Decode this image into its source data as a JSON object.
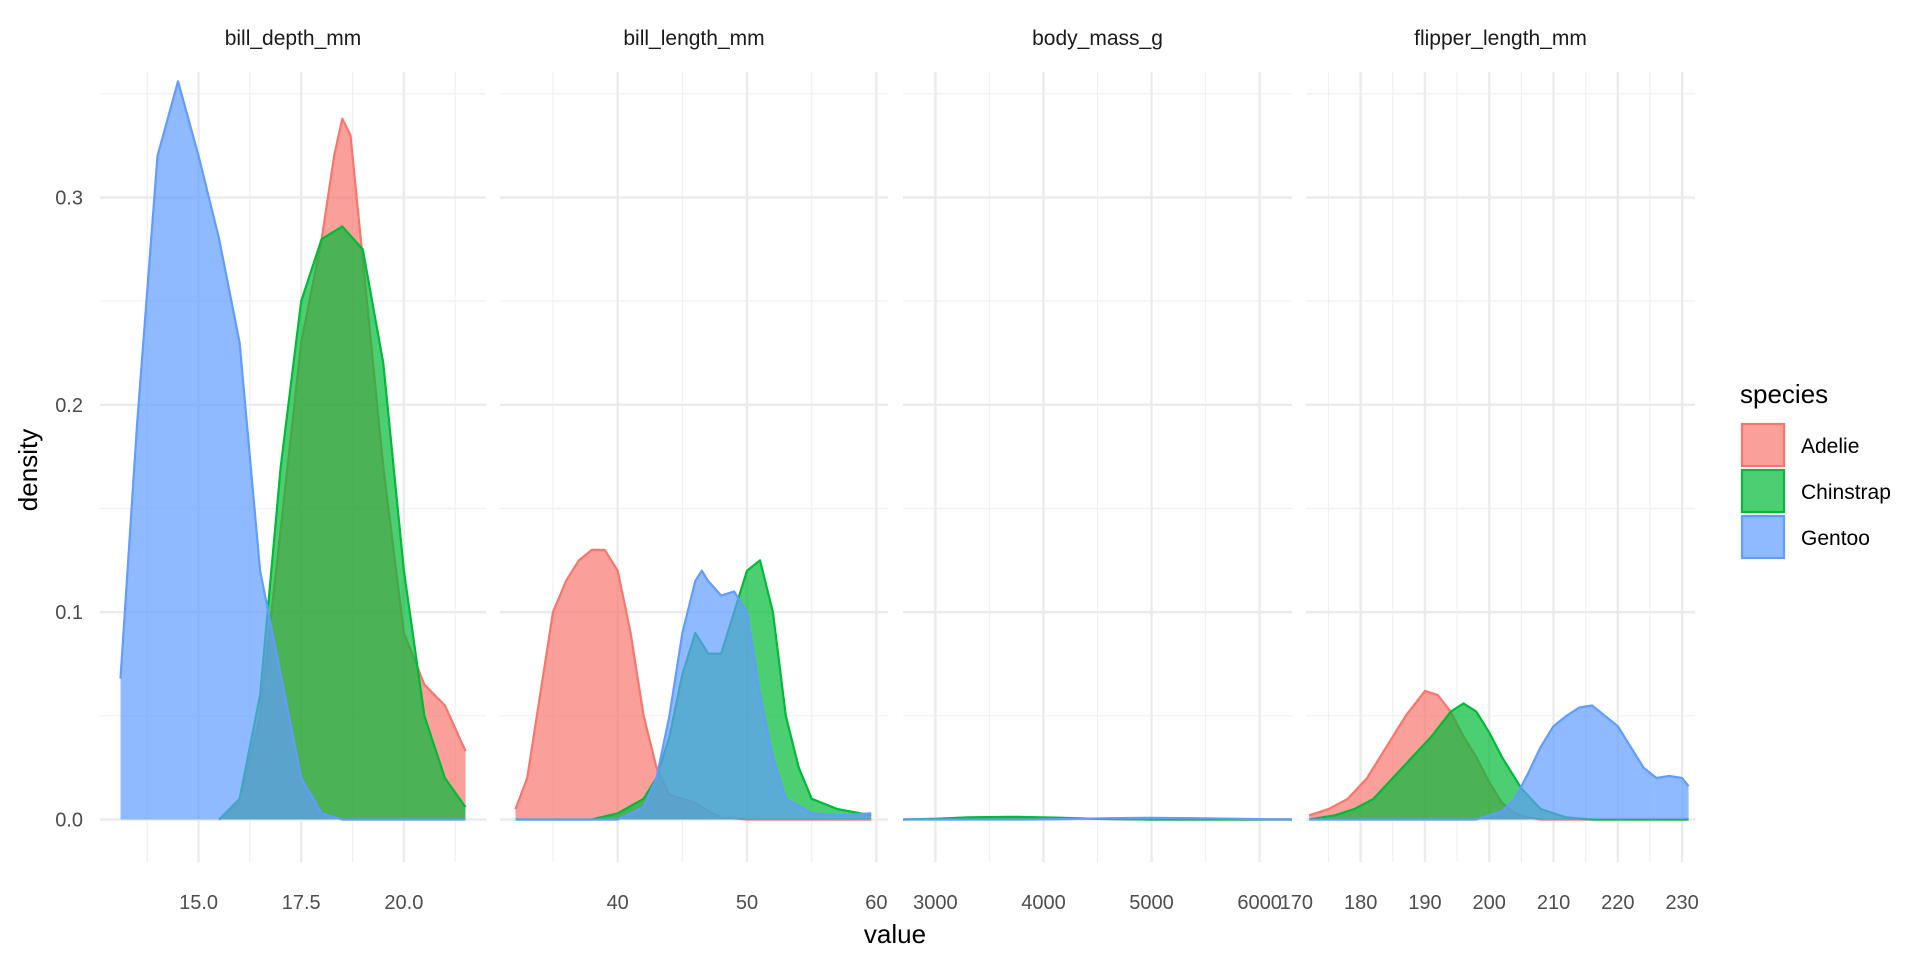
{
  "chart_data": {
    "type": "area",
    "xlabel": "value",
    "ylabel": "density",
    "y_ticks": [
      "0.0",
      "0.1",
      "0.2",
      "0.3"
    ],
    "ylim": [
      -0.0205,
      0.3605
    ],
    "grid": true,
    "legend": {
      "title": "species",
      "placement": "right",
      "entries": [
        "Adelie",
        "Chinstrap",
        "Gentoo"
      ]
    },
    "colors": {
      "Adelie": "#F8766D",
      "Chinstrap": "#00BA38",
      "Gentoo": "#619CFF"
    },
    "facets": [
      {
        "label": "bill_depth_mm",
        "xlim": [
          12.6,
          22.0
        ],
        "x_ticks": [
          "15.0",
          "17.5",
          "20.0"
        ],
        "series": [
          {
            "name": "Adelie",
            "x": [
              15.5,
              16.0,
              16.5,
              17.0,
              17.5,
              18.0,
              18.3,
              18.5,
              18.7,
              19.0,
              19.5,
              20.0,
              20.5,
              21.0,
              21.5
            ],
            "y": [
              0.0,
              0.008,
              0.05,
              0.14,
              0.23,
              0.28,
              0.32,
              0.338,
              0.33,
              0.27,
              0.17,
              0.09,
              0.065,
              0.055,
              0.033
            ]
          },
          {
            "name": "Chinstrap",
            "x": [
              15.5,
              16.0,
              16.5,
              17.0,
              17.5,
              18.0,
              18.5,
              19.0,
              19.5,
              20.0,
              20.5,
              21.0,
              21.5
            ],
            "y": [
              0.0,
              0.01,
              0.06,
              0.17,
              0.25,
              0.28,
              0.286,
              0.275,
              0.22,
              0.12,
              0.05,
              0.02,
              0.006
            ]
          },
          {
            "name": "Gentoo",
            "x": [
              13.1,
              13.5,
              14.0,
              14.5,
              15.0,
              15.5,
              16.0,
              16.5,
              17.0,
              17.5,
              18.0,
              18.5,
              19.0,
              21.5
            ],
            "y": [
              0.068,
              0.19,
              0.32,
              0.356,
              0.32,
              0.28,
              0.23,
              0.12,
              0.07,
              0.02,
              0.003,
              0.0,
              0.0,
              0.0
            ]
          }
        ]
      },
      {
        "label": "bill_length_mm",
        "xlim": [
          30.9,
          60.9
        ],
        "x_ticks": [
          "40",
          "50",
          "60"
        ],
        "series": [
          {
            "name": "Adelie",
            "x": [
              32.1,
              33.0,
              34.0,
              35.0,
              36.0,
              37.0,
              38.0,
              39.0,
              40.0,
              41.0,
              42.0,
              43.0,
              44.0,
              45.0,
              46.0,
              47.0,
              48.0,
              50.0,
              59.6
            ],
            "y": [
              0.005,
              0.02,
              0.06,
              0.1,
              0.115,
              0.125,
              0.13,
              0.13,
              0.12,
              0.09,
              0.05,
              0.025,
              0.012,
              0.01,
              0.008,
              0.004,
              0.001,
              0.0,
              0.0
            ]
          },
          {
            "name": "Chinstrap",
            "x": [
              32.1,
              38.0,
              40.0,
              42.0,
              43.0,
              44.0,
              45.0,
              46.0,
              47.0,
              48.0,
              48.5,
              49.0,
              50.0,
              51.0,
              52.0,
              53.0,
              54.0,
              55.0,
              57.0,
              59.6
            ],
            "y": [
              0.0,
              0.0,
              0.003,
              0.01,
              0.02,
              0.04,
              0.07,
              0.09,
              0.08,
              0.08,
              0.09,
              0.1,
              0.12,
              0.125,
              0.1,
              0.05,
              0.025,
              0.01,
              0.005,
              0.002
            ]
          },
          {
            "name": "Gentoo",
            "x": [
              32.1,
              40.0,
              42.0,
              43.0,
              44.0,
              45.0,
              46.0,
              46.5,
              47.0,
              48.0,
              49.0,
              50.0,
              51.0,
              52.0,
              53.0,
              55.0,
              57.0,
              59.6
            ],
            "y": [
              0.0,
              0.0,
              0.006,
              0.02,
              0.05,
              0.09,
              0.115,
              0.12,
              0.115,
              0.108,
              0.11,
              0.1,
              0.06,
              0.03,
              0.01,
              0.003,
              0.002,
              0.003
            ]
          }
        ]
      },
      {
        "label": "body_mass_g",
        "xlim": [
          2700,
          6300
        ],
        "x_ticks": [
          "3000",
          "4000",
          "5000",
          "6000"
        ],
        "series": [
          {
            "name": "Adelie",
            "x": [
              2700,
              3000,
              3300,
              3700,
              4100,
              4500,
              4800,
              5000,
              6300
            ],
            "y": [
              0.0,
              0.0003,
              0.0009,
              0.0011,
              0.0008,
              0.0003,
              0.0001,
              0.0,
              0.0
            ]
          },
          {
            "name": "Chinstrap",
            "x": [
              2700,
              3000,
              3300,
              3700,
              4100,
              4500,
              4800,
              5000,
              6300
            ],
            "y": [
              0.0,
              0.0003,
              0.001,
              0.0013,
              0.0009,
              0.0003,
              0.0001,
              0.0,
              0.0
            ]
          },
          {
            "name": "Gentoo",
            "x": [
              2700,
              3800,
              4200,
              4600,
              5000,
              5400,
              5800,
              6100,
              6300
            ],
            "y": [
              0.0,
              0.0,
              0.0002,
              0.0006,
              0.0008,
              0.0006,
              0.0003,
              0.0001,
              0.0
            ]
          }
        ]
      },
      {
        "label": "flipper_length_mm",
        "xlim": [
          171.5,
          232.0
        ],
        "x_ticks": [
          "170",
          "180",
          "190",
          "200",
          "210",
          "220",
          "230"
        ],
        "series": [
          {
            "name": "Adelie",
            "x": [
              172,
              175,
              178,
              181,
              184,
              187,
              190,
              192,
              194,
              196,
              198,
              200,
              202,
              204,
              206,
              208,
              210,
              231
            ],
            "y": [
              0.002,
              0.005,
              0.01,
              0.02,
              0.035,
              0.05,
              0.062,
              0.06,
              0.052,
              0.04,
              0.03,
              0.018,
              0.008,
              0.003,
              0.001,
              0.0,
              0.0,
              0.0
            ]
          },
          {
            "name": "Chinstrap",
            "x": [
              172,
              176,
              179,
              182,
              185,
              188,
              191,
              194,
              196,
              198,
              200,
              202,
              205,
              208,
              212,
              216,
              231
            ],
            "y": [
              0.0,
              0.002,
              0.005,
              0.01,
              0.02,
              0.03,
              0.04,
              0.052,
              0.056,
              0.052,
              0.042,
              0.03,
              0.015,
              0.005,
              0.001,
              0.0,
              0.0
            ]
          },
          {
            "name": "Gentoo",
            "x": [
              172,
              198,
              202,
              204,
              206,
              208,
              210,
              212,
              214,
              216,
              218,
              220,
              222,
              224,
              226,
              228,
              230,
              231
            ],
            "y": [
              0.0,
              0.0,
              0.004,
              0.01,
              0.022,
              0.035,
              0.045,
              0.05,
              0.054,
              0.055,
              0.05,
              0.045,
              0.035,
              0.025,
              0.02,
              0.021,
              0.02,
              0.016
            ]
          }
        ]
      }
    ]
  }
}
